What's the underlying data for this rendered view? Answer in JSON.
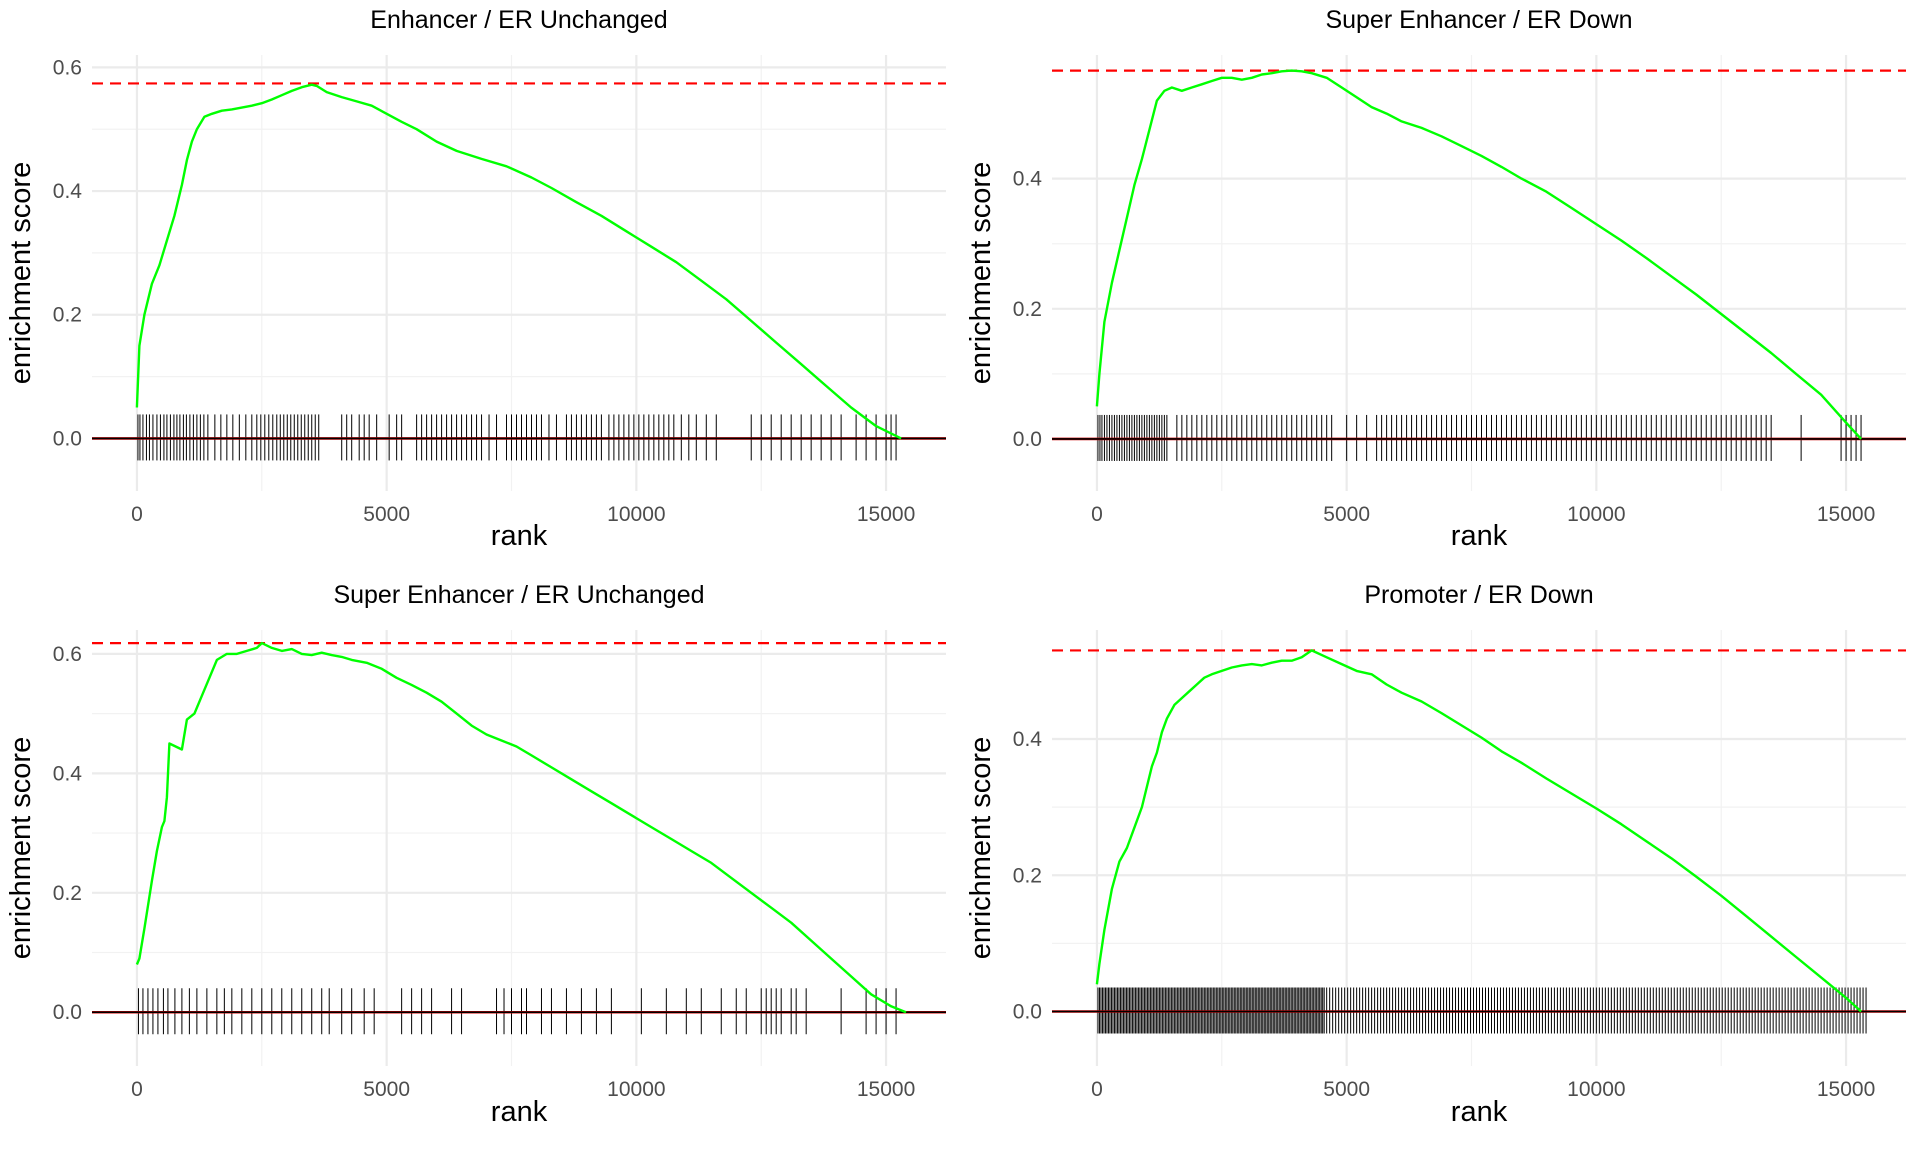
{
  "chart_data": [
    {
      "type": "line",
      "title": "Enhancer / ER Unchanged",
      "xlabel": "rank",
      "ylabel": "enrichment score",
      "xlim": [
        -900,
        16200
      ],
      "ylim": [
        -0.085,
        0.62
      ],
      "x_ticks": [
        0,
        5000,
        10000,
        15000
      ],
      "y_ticks": [
        0.0,
        0.2,
        0.4,
        0.6
      ],
      "max_es": 0.574,
      "grid": true,
      "series": [
        {
          "color": "#00ff00",
          "x": [
            0,
            50,
            150,
            300,
            450,
            600,
            750,
            900,
            1000,
            1100,
            1200,
            1350,
            1500,
            1700,
            1900,
            2100,
            2300,
            2500,
            2700,
            2900,
            3100,
            3300,
            3500,
            3600,
            3800,
            4100,
            4400,
            4700,
            5000,
            5300,
            5600,
            6000,
            6400,
            6900,
            7400,
            7900,
            8300,
            8800,
            9300,
            9800,
            10300,
            10800,
            11300,
            11800,
            12300,
            12800,
            13300,
            13800,
            14300,
            14800,
            15300
          ],
          "y": [
            0.05,
            0.15,
            0.2,
            0.25,
            0.28,
            0.32,
            0.36,
            0.41,
            0.45,
            0.48,
            0.5,
            0.52,
            0.525,
            0.53,
            0.532,
            0.535,
            0.538,
            0.542,
            0.548,
            0.555,
            0.562,
            0.568,
            0.572,
            0.57,
            0.56,
            0.552,
            0.545,
            0.538,
            0.525,
            0.512,
            0.5,
            0.48,
            0.465,
            0.452,
            0.44,
            0.422,
            0.405,
            0.382,
            0.36,
            0.335,
            0.31,
            0.285,
            0.255,
            0.225,
            0.19,
            0.155,
            0.12,
            0.085,
            0.05,
            0.02,
            0.0
          ]
        }
      ],
      "hits": [
        20,
        60,
        120,
        190,
        250,
        320,
        400,
        470,
        540,
        600,
        670,
        740,
        800,
        860,
        930,
        990,
        1060,
        1130,
        1200,
        1270,
        1340,
        1420,
        1560,
        1680,
        1800,
        1920,
        2050,
        2180,
        2300,
        2400,
        2480,
        2560,
        2640,
        2720,
        2800,
        2870,
        2940,
        3010,
        3080,
        3150,
        3220,
        3290,
        3360,
        3430,
        3500,
        3570,
        3640,
        4100,
        4200,
        4300,
        4450,
        4550,
        4650,
        4800,
        5050,
        5200,
        5300,
        5600,
        5700,
        5800,
        5900,
        6000,
        6100,
        6200,
        6300,
        6400,
        6500,
        6600,
        6700,
        6800,
        6900,
        7050,
        7200,
        7400,
        7500,
        7600,
        7700,
        7800,
        7900,
        8000,
        8100,
        8250,
        8400,
        8600,
        8700,
        8800,
        8900,
        9000,
        9100,
        9200,
        9300,
        9450,
        9550,
        9650,
        9750,
        9850,
        9950,
        10050,
        10150,
        10250,
        10350,
        10450,
        10550,
        10650,
        10750,
        10900,
        11050,
        11200,
        11400,
        11600,
        12300,
        12500,
        12700,
        12900,
        13100,
        13300,
        13500,
        13700,
        13900,
        14100,
        14400,
        14600,
        14800,
        15000,
        15100,
        15200
      ]
    },
    {
      "type": "line",
      "title": "Super Enhancer / ER Down",
      "xlabel": "rank",
      "ylabel": "enrichment score",
      "xlim": [
        -900,
        16200
      ],
      "ylim": [
        -0.08,
        0.59
      ],
      "x_ticks": [
        0,
        5000,
        10000,
        15000
      ],
      "y_ticks": [
        0.0,
        0.2,
        0.4
      ],
      "max_es": 0.566,
      "grid": true,
      "series": [
        {
          "color": "#00ff00",
          "x": [
            0,
            50,
            150,
            300,
            450,
            600,
            750,
            900,
            1000,
            1100,
            1200,
            1350,
            1500,
            1700,
            1900,
            2100,
            2300,
            2500,
            2700,
            2900,
            3100,
            3300,
            3500,
            3700,
            3900,
            4100,
            4300,
            4600,
            4900,
            5200,
            5500,
            5800,
            6100,
            6500,
            6900,
            7300,
            7700,
            8100,
            8500,
            9000,
            9500,
            10000,
            10500,
            11000,
            11500,
            12000,
            12500,
            13000,
            13500,
            14000,
            14500,
            15000,
            15300
          ],
          "y": [
            0.05,
            0.1,
            0.18,
            0.24,
            0.29,
            0.34,
            0.39,
            0.43,
            0.46,
            0.49,
            0.52,
            0.535,
            0.54,
            0.535,
            0.54,
            0.545,
            0.55,
            0.555,
            0.555,
            0.552,
            0.555,
            0.56,
            0.562,
            0.565,
            0.566,
            0.565,
            0.562,
            0.555,
            0.54,
            0.525,
            0.51,
            0.5,
            0.488,
            0.478,
            0.465,
            0.45,
            0.435,
            0.418,
            0.4,
            0.38,
            0.355,
            0.33,
            0.305,
            0.278,
            0.25,
            0.222,
            0.192,
            0.162,
            0.132,
            0.1,
            0.068,
            0.025,
            0.0
          ]
        }
      ],
      "hits": [
        20,
        60,
        100,
        150,
        200,
        250,
        300,
        350,
        400,
        450,
        500,
        550,
        600,
        650,
        700,
        750,
        800,
        850,
        900,
        950,
        1000,
        1050,
        1100,
        1150,
        1200,
        1250,
        1300,
        1350,
        1400,
        1600,
        1700,
        1800,
        1900,
        2000,
        2100,
        2200,
        2300,
        2400,
        2500,
        2600,
        2700,
        2800,
        2900,
        3000,
        3100,
        3200,
        3300,
        3400,
        3500,
        3600,
        3700,
        3800,
        3900,
        4000,
        4100,
        4200,
        4300,
        4400,
        4500,
        4600,
        4700,
        5000,
        5200,
        5400,
        5600,
        5700,
        5800,
        5900,
        6000,
        6100,
        6200,
        6300,
        6400,
        6500,
        6600,
        6700,
        6800,
        6900,
        7000,
        7100,
        7200,
        7300,
        7400,
        7500,
        7600,
        7700,
        7800,
        7900,
        8000,
        8100,
        8200,
        8300,
        8400,
        8500,
        8600,
        8700,
        8800,
        8900,
        9000,
        9100,
        9200,
        9300,
        9400,
        9500,
        9600,
        9700,
        9800,
        9900,
        10000,
        10100,
        10200,
        10300,
        10400,
        10500,
        10600,
        10700,
        10800,
        10900,
        11000,
        11100,
        11200,
        11300,
        11400,
        11500,
        11600,
        11700,
        11800,
        11900,
        12000,
        12100,
        12200,
        12300,
        12400,
        12500,
        12600,
        12700,
        12800,
        12900,
        13000,
        13100,
        13200,
        13300,
        13400,
        13500,
        14100,
        14900,
        15000,
        15100,
        15200,
        15300
      ]
    },
    {
      "type": "line",
      "title": "Super Enhancer / ER Unchanged",
      "xlabel": "rank",
      "ylabel": "enrichment score",
      "xlim": [
        -900,
        16200
      ],
      "ylim": [
        -0.09,
        0.64
      ],
      "x_ticks": [
        0,
        5000,
        10000,
        15000
      ],
      "y_ticks": [
        0.0,
        0.2,
        0.4,
        0.6
      ],
      "max_es": 0.618,
      "grid": true,
      "series": [
        {
          "color": "#00ff00",
          "x": [
            0,
            50,
            150,
            300,
            400,
            500,
            550,
            600,
            650,
            900,
            1000,
            1150,
            1300,
            1450,
            1600,
            1800,
            2000,
            2200,
            2400,
            2500,
            2700,
            2900,
            3100,
            3300,
            3500,
            3700,
            3900,
            4100,
            4300,
            4600,
            4900,
            5200,
            5500,
            5800,
            6100,
            6400,
            6700,
            7000,
            7300,
            7600,
            7900,
            8300,
            8700,
            9100,
            9500,
            9900,
            10300,
            10700,
            11100,
            11500,
            11900,
            12300,
            12700,
            13100,
            13500,
            13900,
            14300,
            14700,
            15100,
            15400
          ],
          "y": [
            0.08,
            0.09,
            0.14,
            0.22,
            0.27,
            0.31,
            0.32,
            0.36,
            0.45,
            0.44,
            0.49,
            0.5,
            0.53,
            0.56,
            0.59,
            0.6,
            0.6,
            0.605,
            0.61,
            0.618,
            0.61,
            0.605,
            0.608,
            0.6,
            0.598,
            0.602,
            0.598,
            0.595,
            0.59,
            0.585,
            0.575,
            0.56,
            0.548,
            0.535,
            0.52,
            0.5,
            0.48,
            0.465,
            0.455,
            0.445,
            0.43,
            0.41,
            0.39,
            0.37,
            0.35,
            0.33,
            0.31,
            0.29,
            0.27,
            0.25,
            0.225,
            0.2,
            0.175,
            0.15,
            0.12,
            0.09,
            0.06,
            0.03,
            0.01,
            0.0
          ]
        }
      ],
      "hits": [
        30,
        120,
        220,
        320,
        420,
        530,
        620,
        760,
        900,
        1050,
        1200,
        1400,
        1600,
        1750,
        1900,
        2100,
        2300,
        2500,
        2700,
        2900,
        3100,
        3300,
        3500,
        3700,
        3850,
        4100,
        4300,
        4550,
        4750,
        5300,
        5500,
        5700,
        5900,
        6300,
        6500,
        7200,
        7350,
        7500,
        7700,
        7800,
        8100,
        8300,
        8600,
        8900,
        9200,
        9500,
        10100,
        10600,
        11000,
        11300,
        11700,
        12000,
        12200,
        12500,
        12600,
        12700,
        12800,
        12900,
        13100,
        13200,
        13400,
        14100,
        14600,
        14800,
        15000,
        15200
      ]
    },
    {
      "type": "line",
      "title": "Promoter / ER Down",
      "xlabel": "rank",
      "ylabel": "enrichment score",
      "xlim": [
        -900,
        16200
      ],
      "ylim": [
        -0.08,
        0.56
      ],
      "x_ticks": [
        0,
        5000,
        10000,
        15000
      ],
      "y_ticks": [
        0.0,
        0.2,
        0.4
      ],
      "max_es": 0.53,
      "grid": true,
      "series": [
        {
          "color": "#00ff00",
          "x": [
            0,
            50,
            150,
            300,
            450,
            600,
            750,
            900,
            1000,
            1100,
            1200,
            1300,
            1400,
            1550,
            1700,
            1850,
            2000,
            2150,
            2300,
            2500,
            2700,
            2900,
            3100,
            3300,
            3500,
            3700,
            3900,
            4100,
            4300,
            4600,
            4900,
            5200,
            5500,
            5800,
            6100,
            6500,
            6900,
            7300,
            7700,
            8100,
            8500,
            9000,
            9500,
            10000,
            10500,
            11000,
            11500,
            12000,
            12500,
            13000,
            13500,
            14000,
            14500,
            15000,
            15300
          ],
          "y": [
            0.04,
            0.07,
            0.12,
            0.18,
            0.22,
            0.24,
            0.27,
            0.3,
            0.33,
            0.36,
            0.38,
            0.41,
            0.43,
            0.45,
            0.46,
            0.47,
            0.48,
            0.49,
            0.495,
            0.5,
            0.505,
            0.508,
            0.51,
            0.508,
            0.512,
            0.515,
            0.515,
            0.52,
            0.53,
            0.52,
            0.51,
            0.5,
            0.495,
            0.48,
            0.468,
            0.455,
            0.438,
            0.42,
            0.402,
            0.382,
            0.365,
            0.342,
            0.32,
            0.298,
            0.275,
            0.25,
            0.225,
            0.198,
            0.17,
            0.14,
            0.11,
            0.08,
            0.05,
            0.02,
            0.0
          ]
        }
      ],
      "hits": [
        20,
        50,
        80,
        110,
        140,
        170,
        200,
        230,
        260,
        290,
        320,
        350,
        380,
        410,
        440,
        470,
        500,
        530,
        560,
        590,
        620,
        650,
        680,
        710,
        740,
        770,
        800,
        830,
        860,
        890,
        920,
        950,
        980,
        1010,
        1040,
        1070,
        1100,
        1130,
        1160,
        1190,
        1220,
        1250,
        1280,
        1310,
        1340,
        1370,
        1400,
        1430,
        1460,
        1490,
        1520,
        1550,
        1580,
        1610,
        1640,
        1670,
        1700,
        1730,
        1760,
        1790,
        1820,
        1850,
        1880,
        1910,
        1940,
        1970,
        2000,
        2030,
        2060,
        2090,
        2120,
        2150,
        2180,
        2210,
        2240,
        2270,
        2300,
        2330,
        2360,
        2390,
        2420,
        2450,
        2480,
        2510,
        2540,
        2570,
        2600,
        2630,
        2660,
        2690,
        2720,
        2750,
        2780,
        2810,
        2840,
        2870,
        2900,
        2930,
        2960,
        2990,
        3020,
        3050,
        3080,
        3110,
        3140,
        3170,
        3200,
        3230,
        3260,
        3290,
        3320,
        3350,
        3380,
        3410,
        3440,
        3470,
        3500,
        3530,
        3560,
        3590,
        3620,
        3650,
        3680,
        3710,
        3740,
        3770,
        3800,
        3830,
        3860,
        3890,
        3920,
        3950,
        3980,
        4010,
        4040,
        4070,
        4100,
        4130,
        4160,
        4190,
        4220,
        4250,
        4280,
        4310,
        4340,
        4370,
        4400,
        4430,
        4460,
        4490,
        4520,
        4550,
        4600,
        4660,
        4720,
        4780,
        4840,
        4900,
        4960,
        5020,
        5080,
        5140,
        5200,
        5260,
        5320,
        5380,
        5440,
        5500,
        5560,
        5620,
        5680,
        5740,
        5800,
        5860,
        5920,
        5980,
        6040,
        6100,
        6160,
        6220,
        6280,
        6340,
        6400,
        6460,
        6520,
        6580,
        6640,
        6700,
        6760,
        6820,
        6880,
        6940,
        7000,
        7060,
        7120,
        7180,
        7240,
        7300,
        7360,
        7420,
        7480,
        7540,
        7600,
        7660,
        7720,
        7780,
        7840,
        7900,
        7960,
        8020,
        8080,
        8140,
        8200,
        8260,
        8320,
        8380,
        8440,
        8500,
        8560,
        8620,
        8680,
        8740,
        8800,
        8860,
        8920,
        8980,
        9040,
        9100,
        9160,
        9220,
        9280,
        9340,
        9400,
        9460,
        9520,
        9580,
        9640,
        9700,
        9760,
        9820,
        9880,
        9940,
        10000,
        10060,
        10120,
        10180,
        10240,
        10300,
        10360,
        10420,
        10480,
        10540,
        10600,
        10660,
        10720,
        10780,
        10840,
        10900,
        10960,
        11020,
        11080,
        11140,
        11200,
        11260,
        11320,
        11380,
        11440,
        11500,
        11560,
        11620,
        11680,
        11740,
        11800,
        11860,
        11920,
        11980,
        12040,
        12100,
        12160,
        12220,
        12280,
        12340,
        12400,
        12460,
        12520,
        12580,
        12640,
        12700,
        12760,
        12820,
        12880,
        12940,
        13000,
        13060,
        13120,
        13180,
        13240,
        13300,
        13360,
        13420,
        13480,
        13540,
        13600,
        13660,
        13720,
        13780,
        13840,
        13900,
        13960,
        14020,
        14080,
        14140,
        14200,
        14260,
        14320,
        14380,
        14440,
        14500,
        14560,
        14620,
        14680,
        14740,
        14800,
        14860,
        14920,
        14980,
        15040,
        15100,
        15160,
        15220,
        15280,
        15340,
        15400
      ]
    }
  ]
}
